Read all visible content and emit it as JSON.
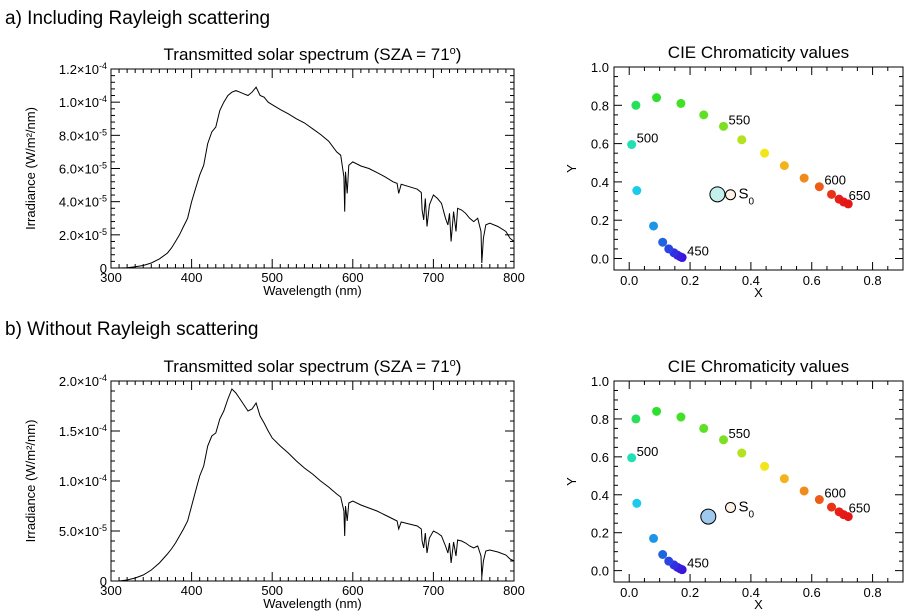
{
  "chart_data": [
    {
      "type": "line",
      "panel_heading": "a) Including Rayleigh scattering",
      "title": "Transmitted solar spectrum (SZA = 71",
      "title_sup": "o",
      "title_close": ")",
      "xlabel": "Wavelength (nm)",
      "ylabel": "Irradiance (W/m²/nm)",
      "xlim": [
        300,
        800
      ],
      "ylim": [
        0,
        0.00012
      ],
      "x_ticks": [
        300,
        400,
        500,
        600,
        700,
        800
      ],
      "x_tick_labels": [
        "300",
        "400",
        "500",
        "600",
        "700",
        "800"
      ],
      "y_ticks": [
        0,
        2e-05,
        4e-05,
        6e-05,
        8e-05,
        0.0001,
        0.00012
      ],
      "y_tick_labels": [
        {
          "mant": "0",
          "exp": ""
        },
        {
          "mant": "2.0×10",
          "exp": "-5"
        },
        {
          "mant": "4.0×10",
          "exp": "-5"
        },
        {
          "mant": "6.0×10",
          "exp": "-5"
        },
        {
          "mant": "8.0×10",
          "exp": "-5"
        },
        {
          "mant": "1.0×10",
          "exp": "-4"
        },
        {
          "mant": "1.2×10",
          "exp": "-4"
        }
      ],
      "series": [
        {
          "x": [
            300,
            310,
            320,
            330,
            340,
            350,
            360,
            370,
            375,
            380,
            385,
            390,
            395,
            400,
            405,
            410,
            415,
            420,
            425,
            430,
            435,
            440,
            445,
            450,
            455,
            460,
            465,
            470,
            475,
            480,
            485,
            490,
            495,
            500,
            510,
            520,
            530,
            540,
            550,
            560,
            570,
            580,
            585,
            589,
            590,
            591,
            593,
            595,
            600,
            610,
            620,
            630,
            640,
            650,
            655,
            657,
            660,
            670,
            680,
            685,
            686,
            688,
            690,
            692,
            695,
            700,
            705,
            710,
            715,
            718,
            720,
            722,
            725,
            728,
            730,
            735,
            740,
            745,
            750,
            755,
            759,
            760,
            762,
            765,
            770,
            780,
            790,
            795,
            800
          ],
          "y": [
            0,
            0,
            2e-07,
            7e-07,
            1.5e-06,
            3e-06,
            5.5e-06,
            9e-06,
            1.2e-05,
            1.6e-05,
            2e-05,
            2.5e-05,
            3e-05,
            4e-05,
            4.8e-05,
            5.6e-05,
            6.2e-05,
            7.5e-05,
            8.2e-05,
            8.5e-05,
            9.5e-05,
            0.0001,
            0.000104,
            0.000106,
            0.000107,
            0.000106,
            0.000105,
            0.000104,
            0.000106,
            0.000109,
            0.000104,
            0.000103,
            0.0001,
            9.85e-05,
            9.55e-05,
            9.3e-05,
            9e-05,
            8.75e-05,
            8.4e-05,
            8.05e-05,
            7.65e-05,
            7e-05,
            6.8e-05,
            5.5e-05,
            3.4e-05,
            5.8e-05,
            4.5e-05,
            6.2e-05,
            6.4e-05,
            6.15e-05,
            6e-05,
            5.75e-05,
            5.5e-05,
            5.2e-05,
            5.1e-05,
            4.5e-05,
            5.05e-05,
            4.9e-05,
            4.75e-05,
            4.55e-05,
            3.5e-05,
            2.9e-05,
            4.2e-05,
            2.5e-05,
            3.8e-05,
            4.4e-05,
            4.2e-05,
            3.9e-05,
            3e-05,
            2.6e-05,
            3.3e-05,
            1.6e-05,
            3.4e-05,
            2.2e-05,
            3.6e-05,
            3.5e-05,
            3.3e-05,
            3e-05,
            2.8e-05,
            3e-05,
            2.2e-05,
            3e-06,
            1.8e-05,
            2.6e-05,
            2.7e-05,
            2.5e-05,
            2.2e-05,
            1.8e-05,
            1.6e-05
          ]
        }
      ]
    },
    {
      "type": "scatter",
      "title": "CIE Chromaticity values",
      "xlabel": "X",
      "ylabel": "Y",
      "xlim": [
        -0.05,
        0.9
      ],
      "ylim": [
        -0.06,
        1.0
      ],
      "x_ticks": [
        0,
        0.2,
        0.4,
        0.6,
        0.8
      ],
      "x_tick_labels": [
        "0.0",
        "0.2",
        "0.4",
        "0.6",
        "0.8"
      ],
      "y_ticks": [
        0,
        0.2,
        0.4,
        0.6,
        0.8,
        1.0
      ],
      "y_tick_labels": [
        "0.0",
        "0.2",
        "0.4",
        "0.6",
        "0.8",
        "1.0"
      ],
      "locus": [
        {
          "x": 0.174,
          "y": 0.005,
          "color": "#3a14d8"
        },
        {
          "x": 0.167,
          "y": 0.01,
          "color": "#4016de"
        },
        {
          "x": 0.158,
          "y": 0.018,
          "color": "#3620e0"
        },
        {
          "x": 0.147,
          "y": 0.03,
          "color": "#3030e0"
        },
        {
          "x": 0.13,
          "y": 0.05,
          "color": "#2844e2"
        },
        {
          "x": 0.11,
          "y": 0.085,
          "color": "#2065e0"
        },
        {
          "x": 0.08,
          "y": 0.17,
          "color": "#1e96e6"
        },
        {
          "x": 0.025,
          "y": 0.355,
          "color": "#1ccaec"
        },
        {
          "x": 0.008,
          "y": 0.595,
          "color": "#22e0b4"
        },
        {
          "x": 0.022,
          "y": 0.8,
          "color": "#24e05a"
        },
        {
          "x": 0.09,
          "y": 0.84,
          "color": "#2ee02e"
        },
        {
          "x": 0.17,
          "y": 0.81,
          "color": "#44e024"
        },
        {
          "x": 0.245,
          "y": 0.75,
          "color": "#5ee024"
        },
        {
          "x": 0.31,
          "y": 0.69,
          "color": "#7ce022"
        },
        {
          "x": 0.37,
          "y": 0.62,
          "color": "#b4e21c"
        },
        {
          "x": 0.445,
          "y": 0.55,
          "color": "#f2e61a"
        },
        {
          "x": 0.51,
          "y": 0.485,
          "color": "#f2b41a"
        },
        {
          "x": 0.575,
          "y": 0.42,
          "color": "#f08a1a"
        },
        {
          "x": 0.625,
          "y": 0.375,
          "color": "#ec5c18"
        },
        {
          "x": 0.665,
          "y": 0.335,
          "color": "#e83416"
        },
        {
          "x": 0.69,
          "y": 0.31,
          "color": "#e62016"
        },
        {
          "x": 0.705,
          "y": 0.295,
          "color": "#e61818"
        },
        {
          "x": 0.72,
          "y": 0.285,
          "color": "#e41616"
        }
      ],
      "wavelength_labels": [
        {
          "text": "450",
          "x": 0.174,
          "y": 0.005
        },
        {
          "text": "500",
          "x": 0.008,
          "y": 0.595
        },
        {
          "text": "550",
          "x": 0.31,
          "y": 0.69
        },
        {
          "text": "600",
          "x": 0.625,
          "y": 0.375
        },
        {
          "text": "650",
          "x": 0.705,
          "y": 0.295
        }
      ],
      "sample_point": {
        "x": 0.29,
        "y": 0.335,
        "color": "#c4f0ec"
      },
      "reference_point": {
        "x": 0.333,
        "y": 0.333,
        "color": "#fff4e6"
      },
      "reference_label": "S",
      "reference_subscript": "0"
    },
    {
      "type": "line",
      "panel_heading": "b) Without Rayleigh scattering",
      "title": "Transmitted solar spectrum (SZA = 71",
      "title_sup": "o",
      "title_close": ")",
      "xlabel": "Wavelength (nm)",
      "ylabel": "Irradiance (W/m²/nm)",
      "xlim": [
        300,
        800
      ],
      "ylim": [
        0,
        0.0002
      ],
      "x_ticks": [
        300,
        400,
        500,
        600,
        700,
        800
      ],
      "x_tick_labels": [
        "300",
        "400",
        "500",
        "600",
        "700",
        "800"
      ],
      "y_ticks": [
        0,
        5e-05,
        0.0001,
        0.00015,
        0.0002
      ],
      "y_tick_labels": [
        {
          "mant": "0",
          "exp": ""
        },
        {
          "mant": "5.0×10",
          "exp": "-5"
        },
        {
          "mant": "1.0×10",
          "exp": "-4"
        },
        {
          "mant": "1.5×10",
          "exp": "-4"
        },
        {
          "mant": "2.0×10",
          "exp": "-4"
        }
      ],
      "series": [
        {
          "x": [
            300,
            310,
            320,
            330,
            340,
            350,
            360,
            370,
            375,
            380,
            385,
            390,
            395,
            400,
            405,
            410,
            415,
            420,
            425,
            430,
            435,
            440,
            445,
            450,
            455,
            460,
            465,
            470,
            475,
            480,
            485,
            490,
            495,
            500,
            510,
            520,
            530,
            540,
            550,
            560,
            570,
            580,
            585,
            589,
            590,
            591,
            593,
            595,
            600,
            610,
            620,
            630,
            640,
            650,
            655,
            657,
            660,
            670,
            680,
            685,
            686,
            688,
            690,
            692,
            695,
            700,
            705,
            710,
            715,
            718,
            720,
            722,
            725,
            728,
            730,
            735,
            740,
            745,
            750,
            755,
            759,
            760,
            762,
            765,
            770,
            780,
            790,
            795,
            800
          ],
          "y": [
            0,
            0,
            1e-06,
            3e-06,
            6e-06,
            1.1e-05,
            1.8e-05,
            2.7e-05,
            3.2e-05,
            3.8e-05,
            4.5e-05,
            5.2e-05,
            6e-05,
            7.5e-05,
            9e-05,
            0.000105,
            0.000115,
            0.000135,
            0.000145,
            0.000148,
            0.000162,
            0.00017,
            0.000182,
            0.000192,
            0.000188,
            0.000182,
            0.000176,
            0.00017,
            0.000172,
            0.000178,
            0.000165,
            0.000158,
            0.00015,
            0.000143,
            0.000135,
            0.000128,
            0.00012,
            0.000113,
            0.000107,
            0.0001,
            9.4e-05,
            8.7e-05,
            8.4e-05,
            7e-05,
            4.5e-05,
            7.5e-05,
            6e-05,
            7.8e-05,
            8e-05,
            7.6e-05,
            7.3e-05,
            7e-05,
            6.6e-05,
            6.2e-05,
            6e-05,
            5.2e-05,
            5.9e-05,
            5.7e-05,
            5.5e-05,
            5.2e-05,
            4e-05,
            3.3e-05,
            4.8e-05,
            2.8e-05,
            4.3e-05,
            5e-05,
            4.8e-05,
            4.5e-05,
            3.5e-05,
            2.8e-05,
            3.8e-05,
            1.8e-05,
            3.9e-05,
            2.5e-05,
            4.1e-05,
            4e-05,
            3.8e-05,
            3.5e-05,
            3.3e-05,
            3.5e-05,
            2.5e-05,
            4e-06,
            2e-05,
            3e-05,
            3.1e-05,
            2.9e-05,
            2.6e-05,
            2.2e-05,
            2e-05
          ]
        }
      ]
    },
    {
      "type": "scatter",
      "title": "CIE Chromaticity values",
      "xlabel": "X",
      "ylabel": "Y",
      "xlim": [
        -0.05,
        0.9
      ],
      "ylim": [
        -0.06,
        1.0
      ],
      "x_ticks": [
        0,
        0.2,
        0.4,
        0.6,
        0.8
      ],
      "x_tick_labels": [
        "0.0",
        "0.2",
        "0.4",
        "0.6",
        "0.8"
      ],
      "y_ticks": [
        0,
        0.2,
        0.4,
        0.6,
        0.8,
        1.0
      ],
      "y_tick_labels": [
        "0.0",
        "0.2",
        "0.4",
        "0.6",
        "0.8",
        "1.0"
      ],
      "locus": [
        {
          "x": 0.174,
          "y": 0.005,
          "color": "#3a14d8"
        },
        {
          "x": 0.167,
          "y": 0.01,
          "color": "#4016de"
        },
        {
          "x": 0.158,
          "y": 0.018,
          "color": "#3620e0"
        },
        {
          "x": 0.147,
          "y": 0.03,
          "color": "#3030e0"
        },
        {
          "x": 0.13,
          "y": 0.05,
          "color": "#2844e2"
        },
        {
          "x": 0.11,
          "y": 0.085,
          "color": "#2065e0"
        },
        {
          "x": 0.08,
          "y": 0.17,
          "color": "#1e96e6"
        },
        {
          "x": 0.025,
          "y": 0.355,
          "color": "#1ccaec"
        },
        {
          "x": 0.008,
          "y": 0.595,
          "color": "#22e0b4"
        },
        {
          "x": 0.022,
          "y": 0.8,
          "color": "#24e05a"
        },
        {
          "x": 0.09,
          "y": 0.84,
          "color": "#2ee02e"
        },
        {
          "x": 0.17,
          "y": 0.81,
          "color": "#44e024"
        },
        {
          "x": 0.245,
          "y": 0.75,
          "color": "#5ee024"
        },
        {
          "x": 0.31,
          "y": 0.69,
          "color": "#7ce022"
        },
        {
          "x": 0.37,
          "y": 0.62,
          "color": "#b4e21c"
        },
        {
          "x": 0.445,
          "y": 0.55,
          "color": "#f2e61a"
        },
        {
          "x": 0.51,
          "y": 0.485,
          "color": "#f2b41a"
        },
        {
          "x": 0.575,
          "y": 0.42,
          "color": "#f08a1a"
        },
        {
          "x": 0.625,
          "y": 0.375,
          "color": "#ec5c18"
        },
        {
          "x": 0.665,
          "y": 0.335,
          "color": "#e83416"
        },
        {
          "x": 0.69,
          "y": 0.31,
          "color": "#e62016"
        },
        {
          "x": 0.705,
          "y": 0.295,
          "color": "#e61818"
        },
        {
          "x": 0.72,
          "y": 0.285,
          "color": "#e41616"
        }
      ],
      "wavelength_labels": [
        {
          "text": "450",
          "x": 0.174,
          "y": 0.005
        },
        {
          "text": "500",
          "x": 0.008,
          "y": 0.595
        },
        {
          "text": "550",
          "x": 0.31,
          "y": 0.69
        },
        {
          "text": "600",
          "x": 0.625,
          "y": 0.375
        },
        {
          "text": "650",
          "x": 0.705,
          "y": 0.295
        }
      ],
      "sample_point": {
        "x": 0.26,
        "y": 0.285,
        "color": "#9ec8ec"
      },
      "reference_point": {
        "x": 0.333,
        "y": 0.333,
        "color": "#fff4e6"
      },
      "reference_label": "S",
      "reference_subscript": "0"
    }
  ]
}
